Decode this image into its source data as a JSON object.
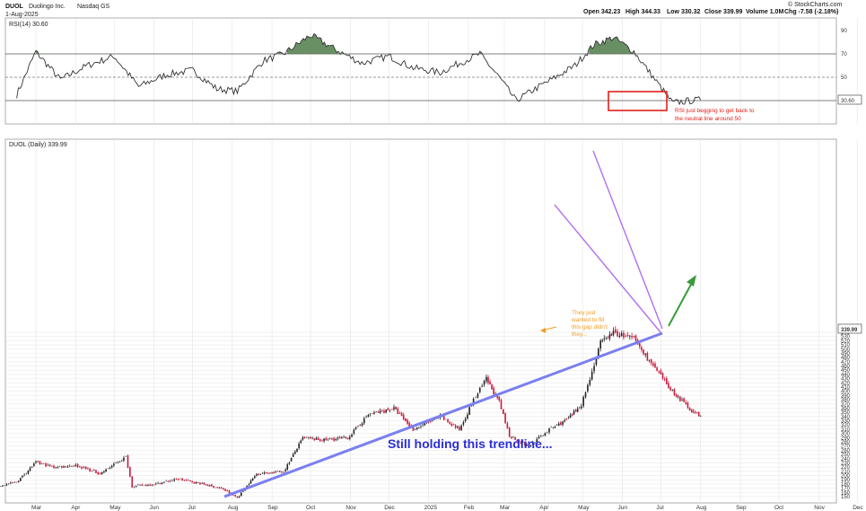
{
  "header": {
    "symbol": "DUOL",
    "company": "Duolingo Inc.",
    "exchange": "Nasdaq GS",
    "date": "1-Aug-2025",
    "credit": "© StockCharts.com",
    "ohlc": {
      "open": "Open 342.23",
      "high": "High 344.33",
      "low": "Low 330.32",
      "close": "Close 339.99",
      "volume": "Volume 1.0M",
      "change": "Chg -7.58 (-2.18%)"
    }
  },
  "rsi_panel": {
    "label": "RSI(14) 30.60",
    "current_value_tag": "30.60",
    "levels": [
      70,
      50,
      30
    ],
    "y_ticks": [
      "90",
      "70",
      "50",
      "30"
    ],
    "annotation_line1": "RSI just begging to get back to",
    "annotation_line2": "the neutral line around 50"
  },
  "price_panel": {
    "label": "DUOL (Daily) 339.99",
    "last_price_tag": "339.99",
    "y_ticks": [
      "540",
      "530",
      "520",
      "510",
      "500",
      "490",
      "480",
      "470",
      "460",
      "450",
      "440",
      "430",
      "420",
      "410",
      "400",
      "390",
      "380",
      "370",
      "360",
      "350",
      "340",
      "330",
      "320",
      "310",
      "300",
      "290",
      "280",
      "270",
      "260",
      "250",
      "240",
      "230",
      "220",
      "210",
      "200",
      "190",
      "180",
      "170",
      "160",
      "150"
    ],
    "gap_note_lines": [
      "They just",
      "wanted to fill",
      "this gap didn't",
      "they..."
    ],
    "trendline_note": "Still holding this trendline..."
  },
  "x_axis": {
    "labels": [
      "Mar",
      "Apr",
      "May",
      "Jun",
      "Jul",
      "Aug",
      "Sep",
      "Oct",
      "Nov",
      "Dec",
      "2025",
      "Feb",
      "Mar",
      "Apr",
      "May",
      "Jun",
      "Jul",
      "Aug",
      "Sep",
      "Oct",
      "Nov",
      "Dec"
    ]
  },
  "colors": {
    "up": "#222222",
    "down": "#c8193c",
    "rsi_fill": "#4f7d4a",
    "trendline": "#7a7ff0",
    "wedge": "#b070f0",
    "arrow": "#3a9a3a",
    "box": "#e0201a",
    "grid": "#e4e4e4"
  },
  "chart_data": [
    {
      "type": "line",
      "name": "RSI(14)",
      "ylim": [
        0,
        100
      ],
      "reference_lines": [
        70,
        50,
        30
      ],
      "x": [
        "2024-02-15",
        "2024-03-01",
        "2024-03-20",
        "2024-04-10",
        "2024-05-01",
        "2024-05-20",
        "2024-06-10",
        "2024-07-01",
        "2024-07-20",
        "2024-08-05",
        "2024-08-25",
        "2024-09-10",
        "2024-10-01",
        "2024-10-20",
        "2024-11-10",
        "2024-12-01",
        "2024-12-20",
        "2025-01-10",
        "2025-01-25",
        "2025-02-10",
        "2025-02-25",
        "2025-03-10",
        "2025-03-25",
        "2025-04-10",
        "2025-04-25",
        "2025-05-10",
        "2025-05-25",
        "2025-06-10",
        "2025-06-25",
        "2025-07-10",
        "2025-07-25",
        "2025-08-01"
      ],
      "y": [
        35,
        72,
        48,
        60,
        68,
        42,
        52,
        56,
        40,
        38,
        64,
        70,
        86,
        74,
        62,
        68,
        58,
        54,
        62,
        70,
        50,
        30,
        40,
        50,
        60,
        78,
        84,
        72,
        50,
        28,
        30,
        30.6
      ]
    },
    {
      "type": "line",
      "name": "DUOL (Daily)",
      "ylim": [
        145,
        550
      ],
      "x": [
        "2024-02-01",
        "2024-02-15",
        "2024-03-01",
        "2024-03-15",
        "2024-04-01",
        "2024-04-20",
        "2024-05-10",
        "2024-05-15",
        "2024-06-01",
        "2024-06-20",
        "2024-07-10",
        "2024-07-25",
        "2024-08-05",
        "2024-08-20",
        "2024-09-10",
        "2024-09-25",
        "2024-10-10",
        "2024-10-30",
        "2024-11-15",
        "2024-12-05",
        "2024-12-20",
        "2025-01-10",
        "2025-01-25",
        "2025-02-05",
        "2025-02-15",
        "2025-02-25",
        "2025-03-05",
        "2025-03-20",
        "2025-04-05",
        "2025-04-20",
        "2025-04-30",
        "2025-05-05",
        "2025-05-15",
        "2025-05-25",
        "2025-06-10",
        "2025-06-25",
        "2025-07-10",
        "2025-07-25",
        "2025-08-01"
      ],
      "y": [
        175,
        185,
        232,
        220,
        225,
        205,
        245,
        175,
        180,
        192,
        180,
        168,
        148,
        205,
        210,
        290,
        285,
        290,
        345,
        360,
        310,
        340,
        310,
        380,
        430,
        375,
        295,
        270,
        310,
        335,
        370,
        415,
        515,
        540,
        525,
        460,
        400,
        355,
        339.99
      ]
    }
  ]
}
